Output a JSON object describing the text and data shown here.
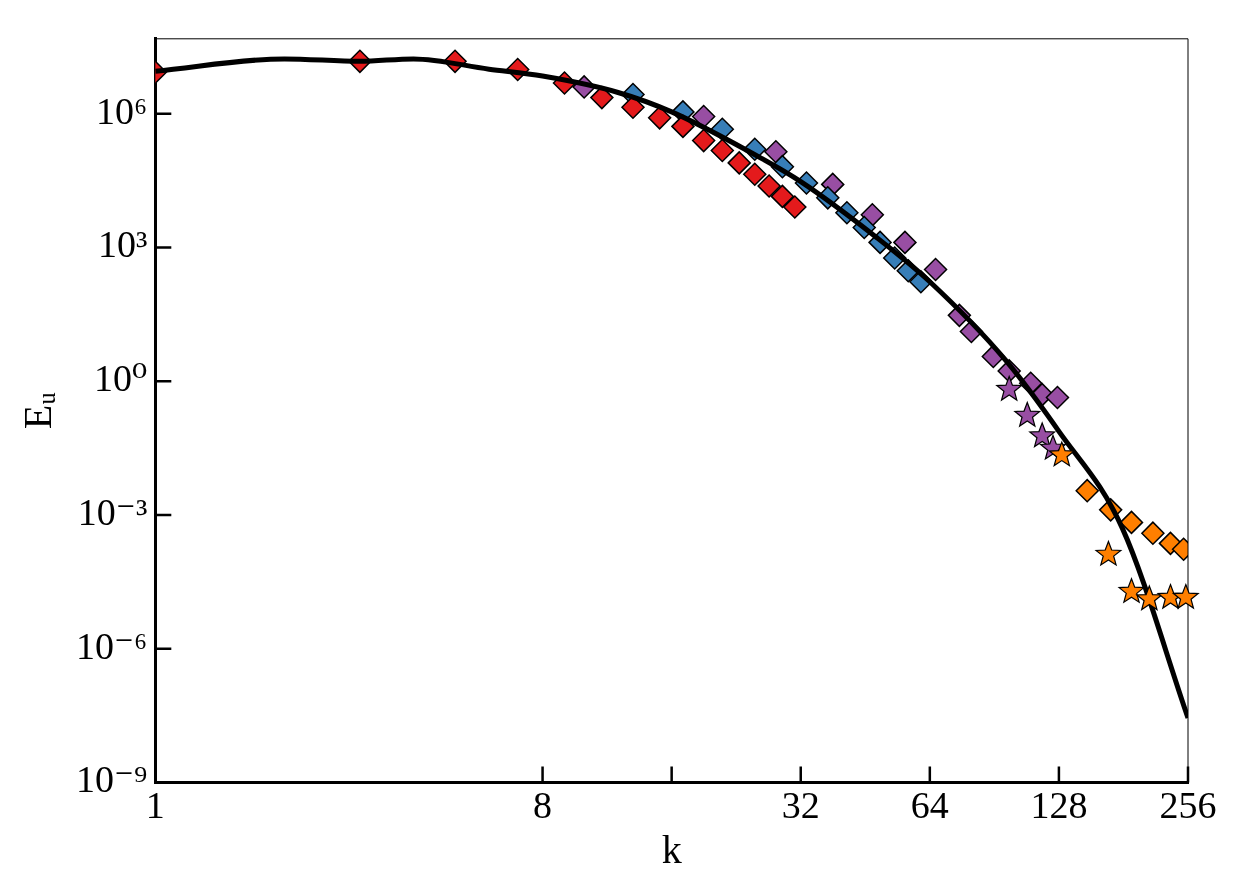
{
  "chart_data": {
    "type": "scatter",
    "xlabel": "k",
    "ylabel": "Eᵤ",
    "log": "xy",
    "grid": false,
    "legend": false,
    "xlim": [
      1,
      256
    ],
    "xticks": [
      1,
      8,
      {
        "value": 16,
        "label": null
      },
      32,
      64,
      128,
      256
    ],
    "ylim": [
      1e-09,
      48000000.0
    ],
    "yticks": [
      {
        "value": 1e-09,
        "label": "10⁻⁹"
      },
      {
        "value": 1e-06,
        "label": "10⁻⁶"
      },
      {
        "value": 0.001,
        "label": "10⁻³"
      },
      {
        "value": 1,
        "label": "10⁰"
      },
      {
        "value": 1000,
        "label": "10³"
      },
      {
        "value": 1000000,
        "label": "10⁶"
      }
    ],
    "series": [
      {
        "marker": "diamond",
        "color": "#e41a1c",
        "x": [
          1,
          3,
          5,
          7,
          9,
          11,
          13,
          15,
          17,
          19,
          21,
          23,
          25,
          27,
          29,
          31
        ],
        "values": [
          8500000.0,
          15000000.0,
          15000000.0,
          9800000.0,
          4900000.0,
          2300000.0,
          1400000.0,
          810000.0,
          520000.0,
          250000.0,
          150000.0,
          79000.0,
          44000.0,
          24000.0,
          14000.0,
          8100.0
        ]
      },
      {
        "marker": "diamond",
        "color": "#377eb8",
        "x": [
          13,
          17,
          21,
          25,
          29,
          33,
          37,
          41,
          45,
          49,
          53,
          57,
          61
        ],
        "values": [
          2700000.0,
          1100000.0,
          450000.0,
          160000.0,
          65000.0,
          28000.0,
          13000.0,
          6000,
          2800,
          1300,
          580,
          300,
          170
        ]
      },
      {
        "marker": "diamond",
        "color": "#984ea3",
        "x": [
          10,
          19,
          28,
          38,
          47,
          56,
          66,
          75,
          80,
          90,
          98,
          110,
          117,
          127
        ],
        "values": [
          4000000.0,
          870000.0,
          140000.0,
          26000.0,
          5400,
          1300,
          320,
          30,
          13,
          3.6,
          1.7,
          0.9,
          0.5,
          0.43
        ]
      },
      {
        "marker": "star",
        "color": "#984ea3",
        "x": [
          98,
          108,
          117,
          124
        ],
        "values": [
          0.65,
          0.17,
          0.059,
          0.031
        ]
      },
      {
        "marker": "diamond",
        "color": "#ff7f00",
        "x": [
          149,
          169,
          189,
          212,
          233,
          250
        ],
        "values": [
          0.0035,
          0.0013,
          0.00068,
          0.00039,
          0.00023,
          0.00017
        ]
      },
      {
        "marker": "star",
        "color": "#ff7f00",
        "x": [
          130,
          167,
          189,
          208,
          233,
          253
        ],
        "values": [
          0.022,
          0.00013,
          1.9e-05,
          1.3e-05,
          1.4e-05,
          1.4e-05
        ]
      },
      {
        "type": "line",
        "marker": "none",
        "color": "#000000",
        "x": [
          1,
          2,
          3,
          4,
          6,
          8,
          12,
          16,
          24,
          32,
          48,
          64,
          96,
          128,
          180,
          256
        ],
        "values": [
          9000000.0,
          17000000.0,
          15000000.0,
          17000000.0,
          10000000.0,
          7000000.0,
          3000000.0,
          1100000.0,
          150000.0,
          30000.0,
          1700,
          170,
          3,
          0.075,
          0.0005,
          2.8e-08
        ]
      }
    ]
  }
}
